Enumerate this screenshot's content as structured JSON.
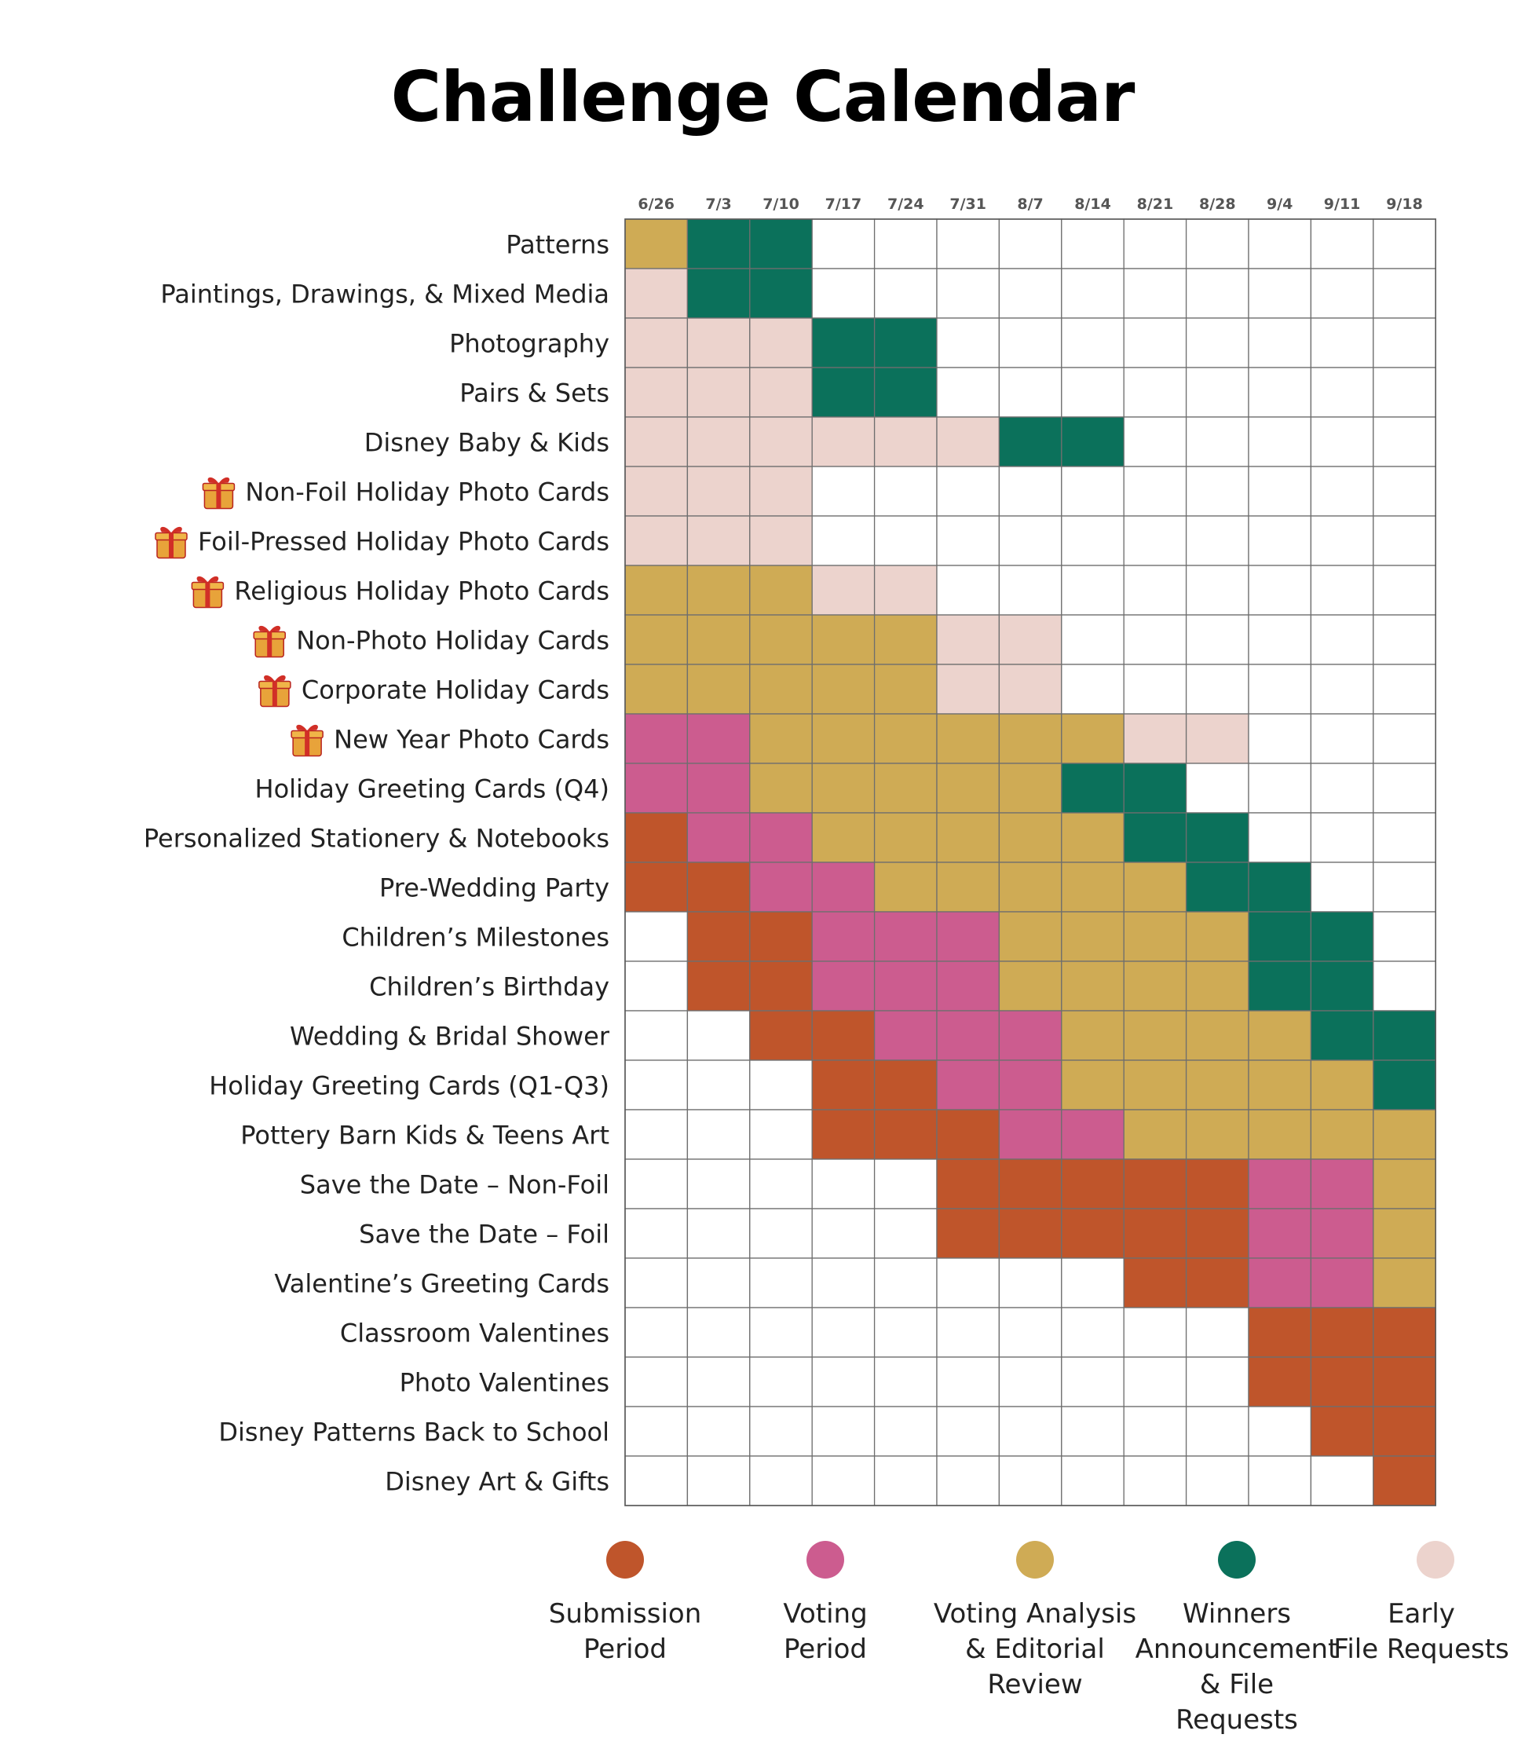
{
  "chart_data": {
    "type": "heatmap",
    "title": "Challenge Calendar",
    "columns": [
      "6/26",
      "7/3",
      "7/10",
      "7/17",
      "7/24",
      "7/31",
      "8/7",
      "8/14",
      "8/21",
      "8/28",
      "9/4",
      "9/11",
      "9/18"
    ],
    "phase_colors": {
      "S": "#bf552b",
      "V": "#cc5c8f",
      "A": "#cfab55",
      "W": "#0b715b",
      "E": "#ecd3cd",
      "_": "#ffffff"
    },
    "rows": [
      {
        "label": "Patterns",
        "gift": false,
        "cells": "AWW__________"
      },
      {
        "label": "Paintings, Drawings, & Mixed Media",
        "gift": false,
        "cells": "EWW__________"
      },
      {
        "label": "Photography",
        "gift": false,
        "cells": "EEEWW________"
      },
      {
        "label": "Pairs & Sets",
        "gift": false,
        "cells": "EEEWW________"
      },
      {
        "label": "Disney Baby & Kids",
        "gift": false,
        "cells": "EEEEEEWW_____"
      },
      {
        "label": "Non-Foil Holiday Photo Cards",
        "gift": true,
        "cells": "EEE__________"
      },
      {
        "label": "Foil-Pressed Holiday Photo Cards",
        "gift": true,
        "cells": "EEE__________"
      },
      {
        "label": "Religious Holiday Photo Cards",
        "gift": true,
        "cells": "AAAEE________"
      },
      {
        "label": "Non-Photo Holiday Cards",
        "gift": true,
        "cells": "AAAAAEE______"
      },
      {
        "label": "Corporate Holiday Cards",
        "gift": true,
        "cells": "AAAAAEE______"
      },
      {
        "label": "New Year Photo Cards",
        "gift": true,
        "cells": "VVAAAAAAEE___"
      },
      {
        "label": "Holiday Greeting Cards (Q4)",
        "gift": false,
        "cells": "VVAAAAAWW____"
      },
      {
        "label": "Personalized Stationery & Notebooks",
        "gift": false,
        "cells": "SVVAAAAAWW___"
      },
      {
        "label": "Pre-Wedding Party",
        "gift": false,
        "cells": "SSVVAAAAAWW__"
      },
      {
        "label": "Children’s Milestones",
        "gift": false,
        "cells": "_SSVVVAAAAWW_"
      },
      {
        "label": "Children’s Birthday",
        "gift": false,
        "cells": "_SSVVVAAAAWW_"
      },
      {
        "label": "Wedding & Bridal Shower",
        "gift": false,
        "cells": "__SSVVVAAAAWW"
      },
      {
        "label": "Holiday Greeting Cards (Q1-Q3)",
        "gift": false,
        "cells": "___SSVVAAAAAW"
      },
      {
        "label": "Pottery Barn Kids & Teens Art",
        "gift": false,
        "cells": "___SSSVVAAAAA"
      },
      {
        "label": "Save the Date – Non-Foil",
        "gift": false,
        "cells": "_____SSSSSVVA"
      },
      {
        "label": "Save the Date – Foil",
        "gift": false,
        "cells": "_____SSSSSVVA"
      },
      {
        "label": "Valentine’s Greeting Cards",
        "gift": false,
        "cells": "________SSVVA"
      },
      {
        "label": "Classroom Valentines",
        "gift": false,
        "cells": "__________SSS"
      },
      {
        "label": "Photo Valentines",
        "gift": false,
        "cells": "__________SSS"
      },
      {
        "label": "Disney Patterns Back to School",
        "gift": false,
        "cells": "___________SS"
      },
      {
        "label": "Disney Art & Gifts",
        "gift": false,
        "cells": "____________S"
      }
    ],
    "legend": [
      {
        "key": "S",
        "label": "Submission\nPeriod"
      },
      {
        "key": "V",
        "label": "Voting\nPeriod"
      },
      {
        "key": "A",
        "label": "Voting Analysis\n& Editorial\nReview"
      },
      {
        "key": "W",
        "label": "Winners\nAnnouncement\n& File Requests"
      },
      {
        "key": "E",
        "label": "Early\nFile Requests"
      }
    ],
    "icons": {
      "gift": "gift-icon"
    }
  }
}
